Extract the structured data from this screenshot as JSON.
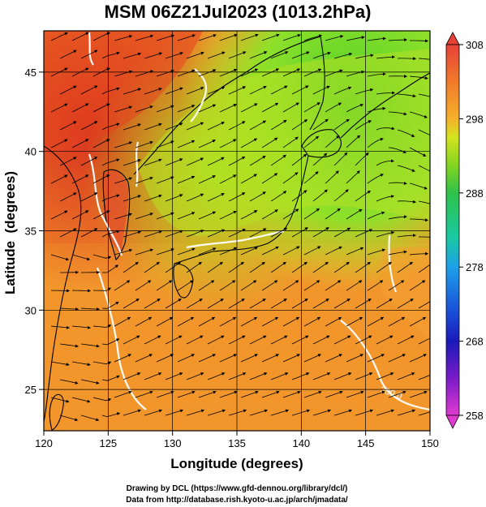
{
  "title": "MSM 06Z21Jul2023 (1013.2hPa)",
  "xlabel": "Longitude (degrees)",
  "ylabel": "Latitude  (degrees)",
  "credits": {
    "line1": "Drawing by DCL (https://www.gfd-dennou.org/library/dcl/)",
    "line2": "Data from http://database.rish.kyoto-u.ac.jp/arch/jmadata/"
  },
  "map": {
    "lon_range": [
      120,
      150
    ],
    "lat_range": [
      22.4,
      47.6
    ],
    "x_ticks": [
      "120",
      "125",
      "130",
      "135",
      "140",
      "145",
      "150"
    ],
    "x_tick_values": [
      120,
      125,
      130,
      135,
      140,
      145,
      150
    ],
    "y_ticks": [
      "25",
      "30",
      "35",
      "40",
      "45"
    ],
    "y_tick_values": [
      25,
      30,
      35,
      40,
      45
    ],
    "contour_label": "300.0",
    "field": "temperature (K) with streamlines"
  },
  "colorbar": {
    "labels": [
      "308",
      "298",
      "288",
      "278",
      "268",
      "258"
    ],
    "values": [
      308,
      298,
      288,
      278,
      268,
      258
    ],
    "colors": [
      "#e8413a",
      "#f07a2a",
      "#f5b12a",
      "#d4e320",
      "#7ed321",
      "#2fc24a",
      "#19c9a2",
      "#1ea0e8",
      "#1a4fd8",
      "#1a1ab8",
      "#7a1ac8",
      "#e03ad0"
    ]
  }
}
